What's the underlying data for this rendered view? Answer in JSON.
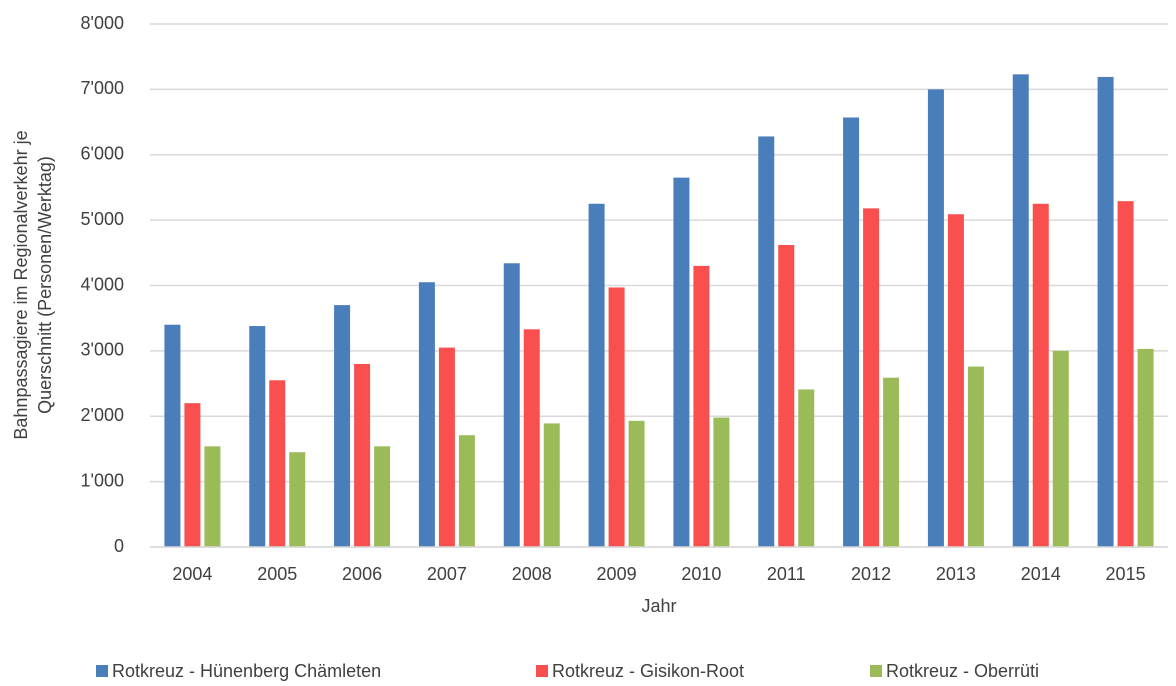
{
  "chart_data": {
    "type": "bar",
    "x_label": "Jahr",
    "y_label": [
      "Bahnpassagiere im Regionalverkehr je",
      "Querschnitt (Personen/Werktag)"
    ],
    "categories": [
      "2004",
      "2005",
      "2006",
      "2007",
      "2008",
      "2009",
      "2010",
      "2011",
      "2012",
      "2013",
      "2014",
      "2015"
    ],
    "series": [
      {
        "name": "Rotkreuz - Hünenberg Chämleten",
        "color": "#4a7ebb",
        "values": [
          3400,
          3380,
          3700,
          4050,
          4340,
          5250,
          5650,
          6280,
          6570,
          7000,
          7230,
          7190
        ]
      },
      {
        "name": "Rotkreuz - Gisikon-Root",
        "color": "#f94f4f",
        "values": [
          2200,
          2550,
          2800,
          3050,
          3330,
          3970,
          4300,
          4620,
          5180,
          5090,
          5250,
          5290
        ]
      },
      {
        "name": "Rotkreuz - Oberrüti",
        "color": "#9bbb59",
        "values": [
          1540,
          1450,
          1540,
          1710,
          1890,
          1930,
          1980,
          2410,
          2590,
          2760,
          3000,
          3030
        ]
      }
    ],
    "ylim": [
      0,
      8000
    ],
    "yticks": [
      0,
      {
        "value": 1000,
        "label": "1'000"
      },
      {
        "value": 2000,
        "label": "2'000"
      },
      {
        "value": 3000,
        "label": "3'000"
      },
      {
        "value": 4000,
        "label": "4'000"
      },
      {
        "value": 5000,
        "label": "5'000"
      },
      {
        "value": 6000,
        "label": "6'000"
      },
      {
        "value": 7000,
        "label": "7'000"
      },
      {
        "value": 8000,
        "label": "8'000"
      }
    ],
    "grid": true,
    "legend": "bottom"
  }
}
